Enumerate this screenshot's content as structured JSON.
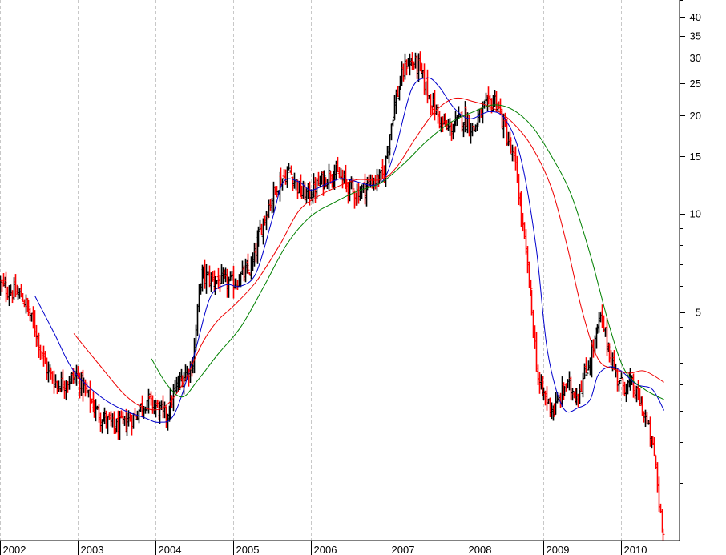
{
  "chart_data": {
    "type": "line",
    "chart_style": "price bars with moving averages (weekly bars, log scale)",
    "y_scale": "log",
    "y_axis_side": "right",
    "grid": {
      "vertical": true,
      "style": "dashed",
      "color": "#c8c8c8"
    },
    "x_tick_labels": [
      "2002",
      "2003",
      "2004",
      "2005",
      "2006",
      "2007",
      "2008",
      "2009",
      "2010"
    ],
    "y_tick_labels": [
      "40",
      "35",
      "30",
      "25",
      "20",
      "15",
      "10",
      "5"
    ],
    "ylim": [
      1.0,
      45
    ],
    "xlim": [
      2002.0,
      2010.75
    ],
    "colors": {
      "up_bar": "#000000",
      "down_bar": "#ff0000",
      "ma_fast": "#0000cc",
      "ma_mid": "#ee0000",
      "ma_slow": "#008000",
      "grid": "#c8c8c8",
      "axis": "#000000"
    },
    "price_anchors": [
      [
        2002.0,
        6.1
      ],
      [
        2002.15,
        5.8
      ],
      [
        2002.3,
        5.6
      ],
      [
        2002.4,
        4.9
      ],
      [
        2002.5,
        4.2
      ],
      [
        2002.6,
        3.4
      ],
      [
        2002.75,
        3.0
      ],
      [
        2002.9,
        3.1
      ],
      [
        2003.0,
        3.2
      ],
      [
        2003.1,
        2.9
      ],
      [
        2003.25,
        2.5
      ],
      [
        2003.5,
        2.2
      ],
      [
        2003.75,
        2.4
      ],
      [
        2003.9,
        2.7
      ],
      [
        2004.0,
        2.6
      ],
      [
        2004.15,
        2.4
      ],
      [
        2004.3,
        3.0
      ],
      [
        2004.5,
        3.5
      ],
      [
        2004.6,
        6.5
      ],
      [
        2004.75,
        6.3
      ],
      [
        2005.0,
        6.1
      ],
      [
        2005.25,
        6.8
      ],
      [
        2005.4,
        9.5
      ],
      [
        2005.6,
        12.5
      ],
      [
        2005.75,
        13.5
      ],
      [
        2005.9,
        11.5
      ],
      [
        2006.0,
        11.5
      ],
      [
        2006.15,
        12.5
      ],
      [
        2006.3,
        13.5
      ],
      [
        2006.45,
        12.5
      ],
      [
        2006.6,
        11.5
      ],
      [
        2006.8,
        12.5
      ],
      [
        2006.95,
        13.0
      ],
      [
        2007.1,
        22.0
      ],
      [
        2007.25,
        29.0
      ],
      [
        2007.4,
        28.5
      ],
      [
        2007.55,
        22.5
      ],
      [
        2007.7,
        19.0
      ],
      [
        2007.8,
        18.0
      ],
      [
        2008.0,
        20.0
      ],
      [
        2008.1,
        18.0
      ],
      [
        2008.25,
        21.0
      ],
      [
        2008.4,
        22.5
      ],
      [
        2008.55,
        17.0
      ],
      [
        2008.65,
        14.0
      ],
      [
        2008.75,
        9.0
      ],
      [
        2008.85,
        5.5
      ],
      [
        2008.95,
        3.0
      ],
      [
        2009.05,
        2.7
      ],
      [
        2009.15,
        2.5
      ],
      [
        2009.3,
        3.0
      ],
      [
        2009.45,
        2.8
      ],
      [
        2009.6,
        3.5
      ],
      [
        2009.75,
        4.8
      ],
      [
        2009.9,
        3.5
      ],
      [
        2010.0,
        3.0
      ],
      [
        2010.15,
        3.0
      ],
      [
        2010.3,
        2.5
      ],
      [
        2010.45,
        1.8
      ],
      [
        2010.5,
        1.3
      ],
      [
        2010.55,
        1.1
      ]
    ],
    "ma_series": [
      {
        "key": "ma_fast",
        "points": [
          [
            2002.45,
            5.6
          ],
          [
            2002.7,
            4.3
          ],
          [
            2002.95,
            3.3
          ],
          [
            2003.3,
            2.75
          ],
          [
            2003.6,
            2.5
          ],
          [
            2003.85,
            2.38
          ],
          [
            2004.05,
            2.3
          ],
          [
            2004.25,
            2.45
          ],
          [
            2004.5,
            3.7
          ],
          [
            2004.7,
            5.5
          ],
          [
            2004.9,
            6.05
          ],
          [
            2005.1,
            6.0
          ],
          [
            2005.3,
            6.6
          ],
          [
            2005.5,
            9.5
          ],
          [
            2005.65,
            12.5
          ],
          [
            2005.85,
            12.5
          ],
          [
            2006.0,
            11.8
          ],
          [
            2006.2,
            12.3
          ],
          [
            2006.4,
            12.8
          ],
          [
            2006.6,
            12.5
          ],
          [
            2006.8,
            12.2
          ],
          [
            2006.95,
            12.8
          ],
          [
            2007.1,
            16.0
          ],
          [
            2007.3,
            24.0
          ],
          [
            2007.5,
            26.0
          ],
          [
            2007.65,
            24.5
          ],
          [
            2007.85,
            21.0
          ],
          [
            2008.05,
            19.5
          ],
          [
            2008.3,
            20.5
          ],
          [
            2008.5,
            19.5
          ],
          [
            2008.7,
            15.0
          ],
          [
            2008.9,
            8.0
          ],
          [
            2009.05,
            3.8
          ],
          [
            2009.25,
            2.55
          ],
          [
            2009.45,
            2.55
          ],
          [
            2009.6,
            2.7
          ],
          [
            2009.7,
            3.2
          ],
          [
            2009.85,
            3.4
          ],
          [
            2010.0,
            3.3
          ],
          [
            2010.2,
            3.0
          ],
          [
            2010.4,
            2.9
          ],
          [
            2010.55,
            2.5
          ]
        ]
      },
      {
        "key": "ma_mid",
        "points": [
          [
            2002.95,
            4.3
          ],
          [
            2003.3,
            3.4
          ],
          [
            2003.6,
            2.8
          ],
          [
            2003.85,
            2.55
          ],
          [
            2004.1,
            2.55
          ],
          [
            2004.35,
            3.0
          ],
          [
            2004.6,
            4.0
          ],
          [
            2004.8,
            4.7
          ],
          [
            2005.0,
            5.2
          ],
          [
            2005.3,
            6.2
          ],
          [
            2005.6,
            8.0
          ],
          [
            2005.85,
            10.2
          ],
          [
            2006.1,
            11.3
          ],
          [
            2006.35,
            12.1
          ],
          [
            2006.6,
            12.7
          ],
          [
            2006.9,
            12.7
          ],
          [
            2007.1,
            13.8
          ],
          [
            2007.35,
            17.0
          ],
          [
            2007.6,
            20.5
          ],
          [
            2007.85,
            22.5
          ],
          [
            2008.1,
            22.0
          ],
          [
            2008.35,
            21.0
          ],
          [
            2008.6,
            19.0
          ],
          [
            2008.85,
            16.0
          ],
          [
            2009.1,
            12.0
          ],
          [
            2009.3,
            8.0
          ],
          [
            2009.5,
            5.0
          ],
          [
            2009.7,
            3.6
          ],
          [
            2009.9,
            3.35
          ],
          [
            2010.1,
            3.25
          ],
          [
            2010.3,
            3.3
          ],
          [
            2010.55,
            3.05
          ]
        ]
      },
      {
        "key": "ma_slow",
        "points": [
          [
            2003.95,
            3.6
          ],
          [
            2004.15,
            3.0
          ],
          [
            2004.35,
            2.75
          ],
          [
            2004.55,
            3.1
          ],
          [
            2004.8,
            3.7
          ],
          [
            2005.1,
            4.5
          ],
          [
            2005.4,
            6.0
          ],
          [
            2005.7,
            8.1
          ],
          [
            2006.0,
            9.8
          ],
          [
            2006.3,
            10.8
          ],
          [
            2006.6,
            11.7
          ],
          [
            2006.9,
            12.4
          ],
          [
            2007.2,
            14.2
          ],
          [
            2007.5,
            16.7
          ],
          [
            2007.8,
            19.0
          ],
          [
            2008.1,
            20.5
          ],
          [
            2008.35,
            21.5
          ],
          [
            2008.6,
            20.8
          ],
          [
            2008.85,
            18.5
          ],
          [
            2009.1,
            15.0
          ],
          [
            2009.35,
            11.5
          ],
          [
            2009.6,
            7.5
          ],
          [
            2009.85,
            4.5
          ],
          [
            2010.05,
            3.3
          ],
          [
            2010.3,
            2.9
          ],
          [
            2010.55,
            2.7
          ]
        ]
      }
    ]
  }
}
